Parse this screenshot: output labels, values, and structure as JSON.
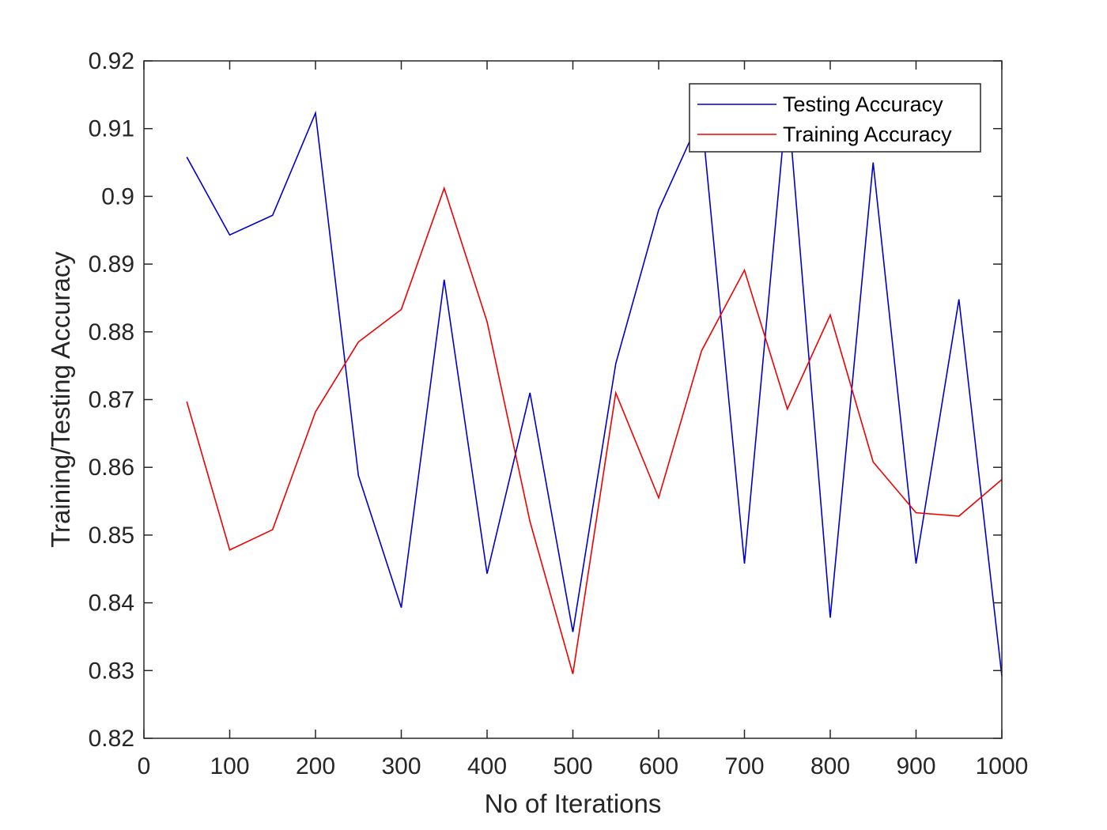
{
  "chart_data": {
    "type": "line",
    "title": "",
    "xlabel": "No of Iterations",
    "ylabel": "Training/Testing Accuracy",
    "xlim": [
      0,
      1000
    ],
    "ylim": [
      0.82,
      0.92
    ],
    "xticks": [
      0,
      100,
      200,
      300,
      400,
      500,
      600,
      700,
      800,
      900,
      1000
    ],
    "xtick_labels": [
      "0",
      "100",
      "200",
      "300",
      "400",
      "500",
      "600",
      "700",
      "800",
      "900",
      "1000"
    ],
    "yticks": [
      0.82,
      0.83,
      0.84,
      0.85,
      0.86,
      0.87,
      0.88,
      0.89,
      0.9,
      0.91,
      0.92
    ],
    "ytick_labels": [
      "0.82",
      "0.83",
      "0.84",
      "0.85",
      "0.86",
      "0.87",
      "0.88",
      "0.89",
      "0.9",
      "0.91",
      "0.92"
    ],
    "grid": false,
    "legend_position": "top-right",
    "x": [
      50,
      100,
      150,
      200,
      250,
      300,
      350,
      400,
      450,
      500,
      550,
      600,
      650,
      700,
      750,
      800,
      850,
      900,
      950,
      1000
    ],
    "series": [
      {
        "name": "Testing Accuracy",
        "color": "#0000cc",
        "values": [
          0.9058,
          0.8943,
          0.8972,
          0.9123,
          0.8588,
          0.8393,
          0.8877,
          0.8443,
          0.871,
          0.8357,
          0.8753,
          0.898,
          0.912,
          0.8458,
          0.915,
          0.8378,
          0.905,
          0.8458,
          0.8848,
          0.8292
        ]
      },
      {
        "name": "Training Accuracy",
        "color": "#ee0000",
        "values": [
          0.8697,
          0.8478,
          0.8508,
          0.8682,
          0.8785,
          0.8833,
          0.9012,
          0.8815,
          0.852,
          0.8295,
          0.871,
          0.8555,
          0.8772,
          0.8891,
          0.8686,
          0.8825,
          0.8608,
          0.8533,
          0.8528,
          0.8582
        ]
      }
    ]
  }
}
